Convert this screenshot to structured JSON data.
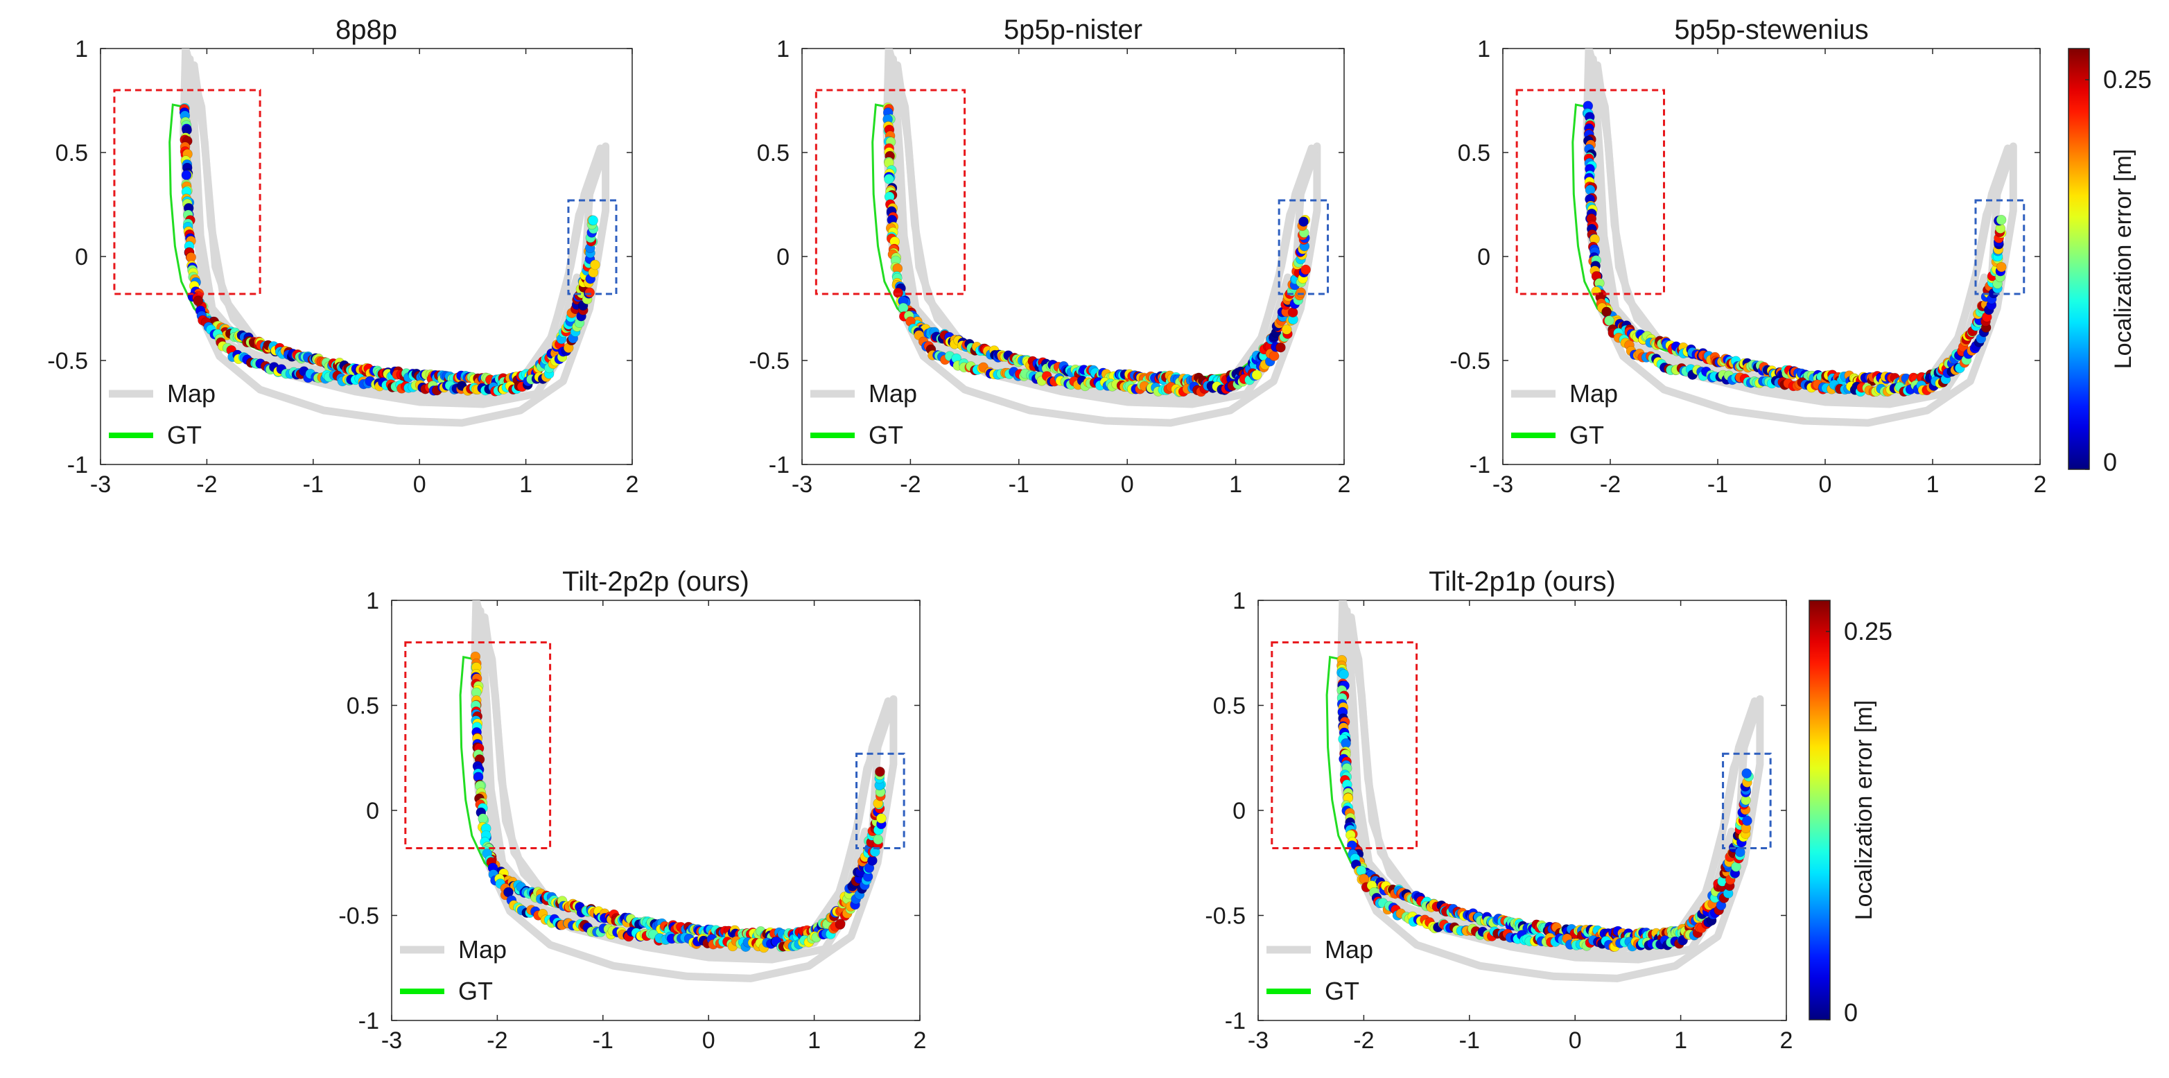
{
  "figure": {
    "colorbar_label": "Localization error [m]",
    "colorbar_ticks": [
      "0",
      "0.25"
    ],
    "colorbar_range": [
      0,
      0.27
    ]
  },
  "chart_data": [
    {
      "type": "scatter",
      "title": "8p8p",
      "xlim": [
        -3,
        2
      ],
      "ylim": [
        -1,
        1
      ],
      "xticks": [
        "-3",
        "-2",
        "-1",
        "0",
        "1",
        "2"
      ],
      "yticks": [
        "-1",
        "-0.5",
        "0",
        "0.5",
        "1"
      ],
      "legend": [
        "Map",
        "GT"
      ],
      "legend_position": "bottom-left",
      "red_box": [
        -2.87,
        -1.5,
        -0.18,
        0.8
      ],
      "blue_box": [
        1.4,
        1.85,
        -0.18,
        0.27
      ],
      "seed": 11
    },
    {
      "type": "scatter",
      "title": "5p5p-nister",
      "xlim": [
        -3,
        2
      ],
      "ylim": [
        -1,
        1
      ],
      "xticks": [
        "-3",
        "-2",
        "-1",
        "0",
        "1",
        "2"
      ],
      "yticks": [
        "-1",
        "-0.5",
        "0",
        "0.5",
        "1"
      ],
      "legend": [
        "Map",
        "GT"
      ],
      "legend_position": "bottom-left",
      "red_box": [
        -2.87,
        -1.5,
        -0.18,
        0.8
      ],
      "blue_box": [
        1.4,
        1.85,
        -0.18,
        0.27
      ],
      "seed": 23
    },
    {
      "type": "scatter",
      "title": "5p5p-stewenius",
      "xlim": [
        -3,
        2
      ],
      "ylim": [
        -1,
        1
      ],
      "xticks": [
        "-3",
        "-2",
        "-1",
        "0",
        "1",
        "2"
      ],
      "yticks": [
        "-1",
        "-0.5",
        "0",
        "0.5",
        "1"
      ],
      "legend": [
        "Map",
        "GT"
      ],
      "legend_position": "bottom-left",
      "red_box": [
        -2.87,
        -1.5,
        -0.18,
        0.8
      ],
      "blue_box": [
        1.4,
        1.85,
        -0.18,
        0.27
      ],
      "seed": 37
    },
    {
      "type": "scatter",
      "title": "Tilt-2p2p (ours)",
      "xlim": [
        -3,
        2
      ],
      "ylim": [
        -1,
        1
      ],
      "xticks": [
        "-3",
        "-2",
        "-1",
        "0",
        "1",
        "2"
      ],
      "yticks": [
        "-1",
        "-0.5",
        "0",
        "0.5",
        "1"
      ],
      "legend": [
        "Map",
        "GT"
      ],
      "legend_position": "bottom-left",
      "red_box": [
        -2.87,
        -1.5,
        -0.18,
        0.8
      ],
      "blue_box": [
        1.4,
        1.85,
        -0.18,
        0.27
      ],
      "seed": 51
    },
    {
      "type": "scatter",
      "title": "Tilt-2p1p (ours)",
      "xlim": [
        -3,
        2
      ],
      "ylim": [
        -1,
        1
      ],
      "xticks": [
        "-3",
        "-2",
        "-1",
        "0",
        "1",
        "2"
      ],
      "yticks": [
        "-1",
        "-0.5",
        "0",
        "0.5",
        "1"
      ],
      "legend": [
        "Map",
        "GT"
      ],
      "legend_position": "bottom-left",
      "red_box": [
        -2.87,
        -1.5,
        -0.18,
        0.8
      ],
      "blue_box": [
        1.4,
        1.85,
        -0.18,
        0.27
      ],
      "seed": 67
    }
  ]
}
